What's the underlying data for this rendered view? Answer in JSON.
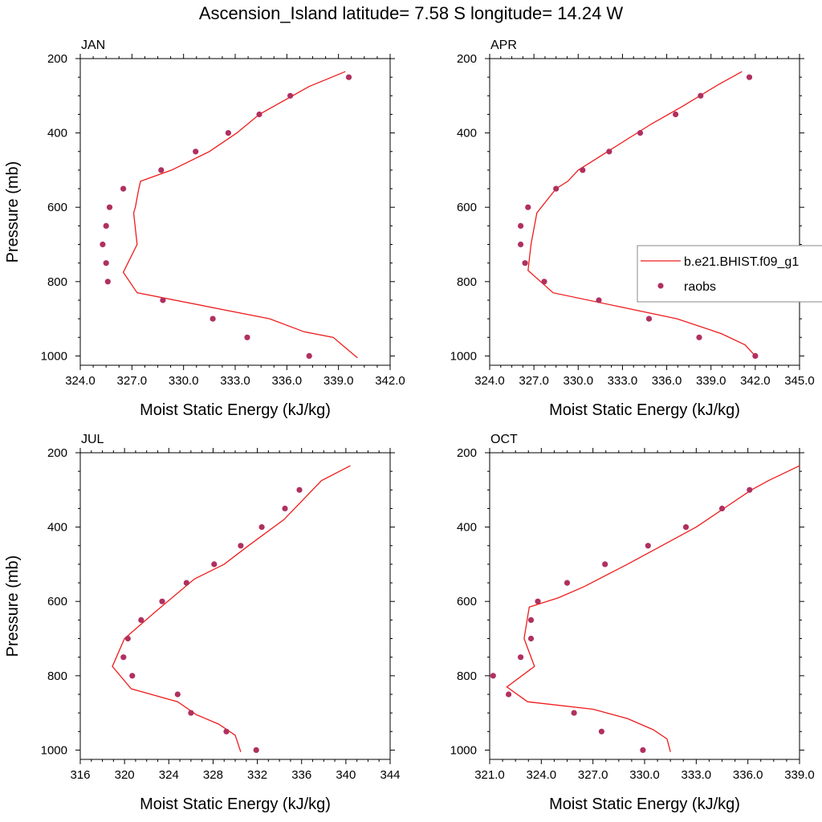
{
  "title": "Ascension_Island  latitude= 7.58 S longitude= 14.24 W",
  "legend": {
    "model_label": "b.e21.BHIST.f09_g1",
    "obs_label": "raobs",
    "line_color": "#ee1c1c",
    "marker_color": "#b03060"
  },
  "chart_data": [
    {
      "type": "line",
      "panel": "JAN",
      "xlabel": "Moist Static Energy (kJ/kg)",
      "ylabel": "Pressure (mb)",
      "xlim": [
        324,
        342
      ],
      "xticks": [
        "324.0",
        "327.0",
        "330.0",
        "333.0",
        "336.0",
        "339.0",
        "342.0"
      ],
      "ylim": [
        200,
        1025
      ],
      "yticks": [
        "200",
        "400",
        "600",
        "800",
        "1000"
      ],
      "y_reversed": true,
      "model": [
        [
          339.4,
          235
        ],
        [
          337.3,
          275
        ],
        [
          334.4,
          350
        ],
        [
          333.1,
          400
        ],
        [
          331.5,
          450
        ],
        [
          329.3,
          500
        ],
        [
          327.5,
          530
        ],
        [
          327.4,
          550
        ],
        [
          327.2,
          600
        ],
        [
          327.1,
          615
        ],
        [
          327.3,
          700
        ],
        [
          326.5,
          775
        ],
        [
          327.3,
          830
        ],
        [
          335.0,
          900
        ],
        [
          337.0,
          935
        ],
        [
          338.7,
          950
        ],
        [
          339.2,
          970
        ],
        [
          340.1,
          1005
        ]
      ],
      "raobs": [
        [
          339.6,
          250
        ],
        [
          336.2,
          300
        ],
        [
          334.4,
          350
        ],
        [
          332.6,
          400
        ],
        [
          330.7,
          450
        ],
        [
          328.7,
          500
        ],
        [
          326.5,
          550
        ],
        [
          325.7,
          600
        ],
        [
          325.5,
          650
        ],
        [
          325.3,
          700
        ],
        [
          325.5,
          750
        ],
        [
          325.6,
          800
        ],
        [
          328.8,
          850
        ],
        [
          331.7,
          900
        ],
        [
          333.7,
          950
        ],
        [
          337.3,
          1000
        ]
      ]
    },
    {
      "type": "line",
      "panel": "APR",
      "xlabel": "Moist Static Energy (kJ/kg)",
      "ylabel": "",
      "xlim": [
        324,
        345
      ],
      "xticks": [
        "324.0",
        "327.0",
        "330.0",
        "333.0",
        "336.0",
        "339.0",
        "342.0",
        "345.0"
      ],
      "ylim": [
        200,
        1025
      ],
      "yticks": [
        "200",
        "400",
        "600",
        "800",
        "1000"
      ],
      "y_reversed": true,
      "model": [
        [
          341.1,
          235
        ],
        [
          339.5,
          270
        ],
        [
          337.0,
          330
        ],
        [
          335.0,
          375
        ],
        [
          332.0,
          450
        ],
        [
          330.0,
          500
        ],
        [
          329.3,
          530
        ],
        [
          328.5,
          550
        ],
        [
          327.2,
          615
        ],
        [
          326.8,
          700
        ],
        [
          326.6,
          770
        ],
        [
          328.3,
          830
        ],
        [
          336.7,
          900
        ],
        [
          339.7,
          940
        ],
        [
          341.3,
          970
        ],
        [
          342.0,
          1000
        ]
      ],
      "raobs": [
        [
          341.6,
          250
        ],
        [
          338.3,
          300
        ],
        [
          336.6,
          350
        ],
        [
          334.2,
          400
        ],
        [
          332.1,
          450
        ],
        [
          330.3,
          500
        ],
        [
          328.5,
          550
        ],
        [
          326.6,
          600
        ],
        [
          326.1,
          650
        ],
        [
          326.1,
          700
        ],
        [
          326.4,
          750
        ],
        [
          327.7,
          800
        ],
        [
          331.4,
          850
        ],
        [
          334.8,
          900
        ],
        [
          338.2,
          950
        ],
        [
          342.0,
          1000
        ]
      ]
    },
    {
      "type": "line",
      "panel": "JUL",
      "xlabel": "Moist Static Energy (kJ/kg)",
      "ylabel": "Pressure (mb)",
      "xlim": [
        316,
        344
      ],
      "xticks": [
        "316",
        "320",
        "324",
        "328",
        "332",
        "336",
        "340",
        "344"
      ],
      "ylim": [
        200,
        1025
      ],
      "yticks": [
        "200",
        "400",
        "600",
        "800",
        "1000"
      ],
      "y_reversed": true,
      "model": [
        [
          340.4,
          235
        ],
        [
          337.8,
          275
        ],
        [
          334.4,
          380
        ],
        [
          331.2,
          450
        ],
        [
          329.0,
          500
        ],
        [
          326.3,
          540
        ],
        [
          322.7,
          630
        ],
        [
          320.0,
          700
        ],
        [
          318.9,
          775
        ],
        [
          320.6,
          835
        ],
        [
          324.8,
          870
        ],
        [
          326.5,
          905
        ],
        [
          328.5,
          930
        ],
        [
          330.0,
          960
        ],
        [
          330.5,
          1005
        ]
      ],
      "raobs": [
        [
          335.8,
          300
        ],
        [
          334.5,
          350
        ],
        [
          332.4,
          400
        ],
        [
          330.5,
          450
        ],
        [
          328.1,
          500
        ],
        [
          325.6,
          550
        ],
        [
          323.4,
          600
        ],
        [
          321.5,
          650
        ],
        [
          320.3,
          700
        ],
        [
          319.9,
          750
        ],
        [
          320.7,
          800
        ],
        [
          324.8,
          850
        ],
        [
          326.0,
          900
        ],
        [
          329.2,
          950
        ],
        [
          331.9,
          1000
        ]
      ]
    },
    {
      "type": "line",
      "panel": "OCT",
      "xlabel": "Moist Static Energy (kJ/kg)",
      "ylabel": "",
      "xlim": [
        321,
        339
      ],
      "xticks": [
        "321.0",
        "324.0",
        "327.0",
        "330.0",
        "333.0",
        "336.0",
        "339.0"
      ],
      "ylim": [
        200,
        1025
      ],
      "yticks": [
        "200",
        "400",
        "600",
        "800",
        "1000"
      ],
      "y_reversed": true,
      "model": [
        [
          339.0,
          235
        ],
        [
          337.2,
          275
        ],
        [
          336.2,
          300
        ],
        [
          334.6,
          350
        ],
        [
          333.0,
          400
        ],
        [
          331.0,
          450
        ],
        [
          329.0,
          500
        ],
        [
          326.5,
          560
        ],
        [
          325.0,
          590
        ],
        [
          323.3,
          615
        ],
        [
          323.0,
          700
        ],
        [
          323.6,
          775
        ],
        [
          322.0,
          830
        ],
        [
          323.2,
          870
        ],
        [
          327.0,
          890
        ],
        [
          329.0,
          915
        ],
        [
          330.5,
          945
        ],
        [
          331.3,
          970
        ],
        [
          331.5,
          1005
        ]
      ],
      "raobs": [
        [
          336.1,
          300
        ],
        [
          334.5,
          350
        ],
        [
          332.4,
          400
        ],
        [
          330.2,
          450
        ],
        [
          327.7,
          500
        ],
        [
          325.5,
          550
        ],
        [
          323.8,
          600
        ],
        [
          323.4,
          650
        ],
        [
          323.4,
          700
        ],
        [
          322.8,
          750
        ],
        [
          321.2,
          800
        ],
        [
          322.1,
          850
        ],
        [
          325.9,
          900
        ],
        [
          327.5,
          950
        ],
        [
          329.9,
          1000
        ]
      ]
    }
  ]
}
